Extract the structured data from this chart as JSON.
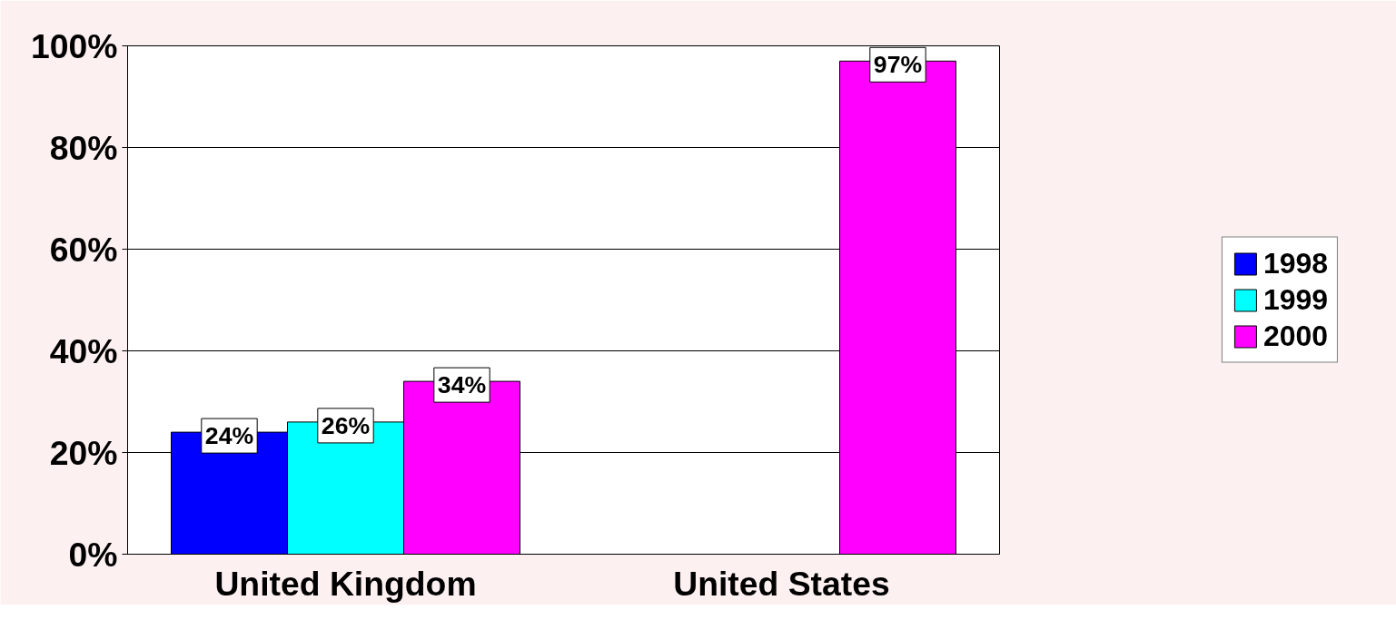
{
  "chart_data": {
    "type": "bar",
    "categories": [
      "United Kingdom",
      "United States"
    ],
    "series": [
      {
        "name": "1998",
        "color": "#0000ff",
        "values": [
          24,
          null
        ],
        "value_labels": [
          "24%",
          null
        ]
      },
      {
        "name": "1999",
        "color": "#00ffff",
        "values": [
          26,
          null
        ],
        "value_labels": [
          "26%",
          null
        ]
      },
      {
        "name": "2000",
        "color": "#ff00ff",
        "values": [
          34,
          97
        ],
        "value_labels": [
          "34%",
          "97%"
        ]
      }
    ],
    "ylim": [
      0,
      100
    ],
    "yticks": [
      {
        "value": 0,
        "label": "0%"
      },
      {
        "value": 20,
        "label": "20%"
      },
      {
        "value": 40,
        "label": "40%"
      },
      {
        "value": 60,
        "label": "60%"
      },
      {
        "value": 80,
        "label": "80%"
      },
      {
        "value": 100,
        "label": "100%"
      }
    ],
    "grid": "y",
    "legend": "right"
  }
}
